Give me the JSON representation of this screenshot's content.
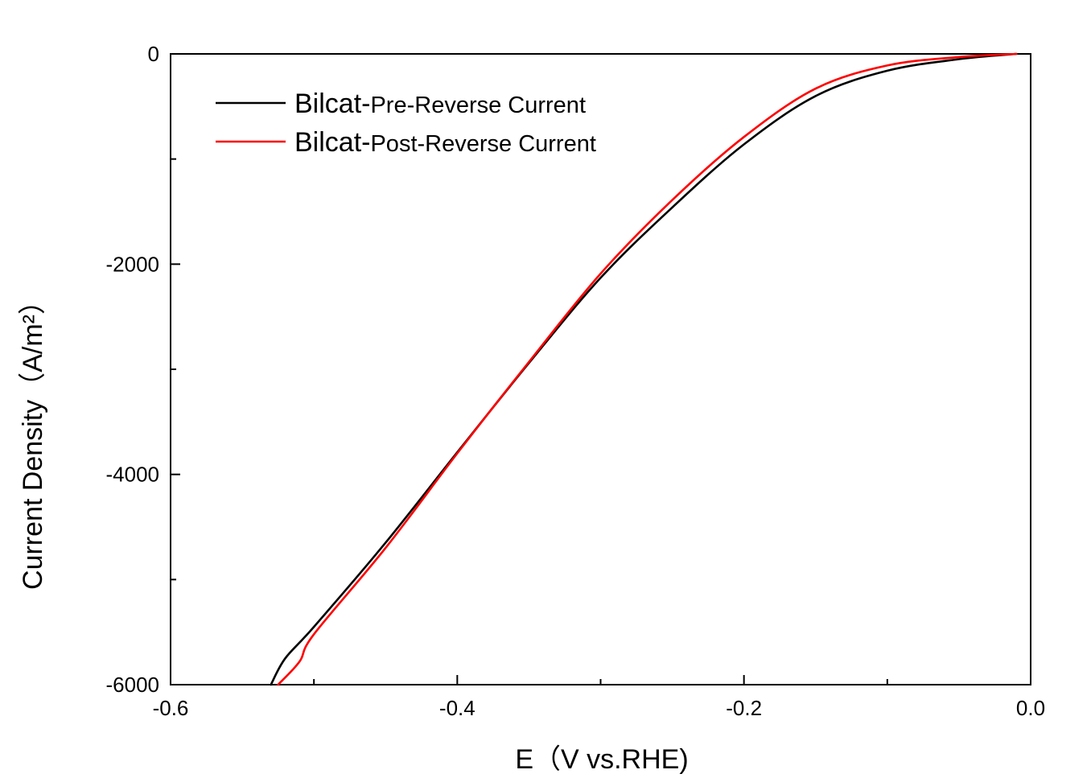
{
  "chart_data": {
    "type": "line",
    "xlabel": "E（V vs.RHE)",
    "ylabel": "Current Density（A/m²）",
    "xlim": [
      -0.6,
      0.0
    ],
    "ylim": [
      -6000,
      0
    ],
    "x_ticks": [
      -0.6,
      -0.4,
      -0.2,
      0.0
    ],
    "x_tick_labels": [
      "-0.6",
      "-0.4",
      "-0.2",
      "0.0"
    ],
    "y_ticks": [
      -6000,
      -4000,
      -2000,
      0
    ],
    "y_tick_labels": [
      "-6000",
      "-4000",
      "-2000",
      "0"
    ],
    "legend_position": "top-left",
    "grid": false,
    "series": [
      {
        "name": "Bilcat-Pre-Reverse Current",
        "legend_prefix": "Bilcat-",
        "legend_suffix": "Pre-Reverse Current",
        "color": "#000000",
        "x": [
          -0.53,
          -0.52,
          -0.5,
          -0.45,
          -0.4,
          -0.35,
          -0.3,
          -0.25,
          -0.2,
          -0.15,
          -0.1,
          -0.05,
          -0.01
        ],
        "y": [
          -6000,
          -5750,
          -5450,
          -4650,
          -3790,
          -2940,
          -2130,
          -1460,
          -860,
          -400,
          -160,
          -50,
          0
        ]
      },
      {
        "name": "Bilcat-Post-Reverse Current",
        "legend_prefix": "Bilcat-",
        "legend_suffix": "Post-Reverse Current",
        "color": "#ff0000",
        "x": [
          -0.525,
          -0.51,
          -0.5,
          -0.45,
          -0.4,
          -0.35,
          -0.3,
          -0.25,
          -0.2,
          -0.15,
          -0.1,
          -0.05,
          -0.01
        ],
        "y": [
          -6000,
          -5780,
          -5520,
          -4700,
          -3800,
          -2930,
          -2090,
          -1390,
          -790,
          -330,
          -110,
          -30,
          0
        ]
      }
    ]
  }
}
